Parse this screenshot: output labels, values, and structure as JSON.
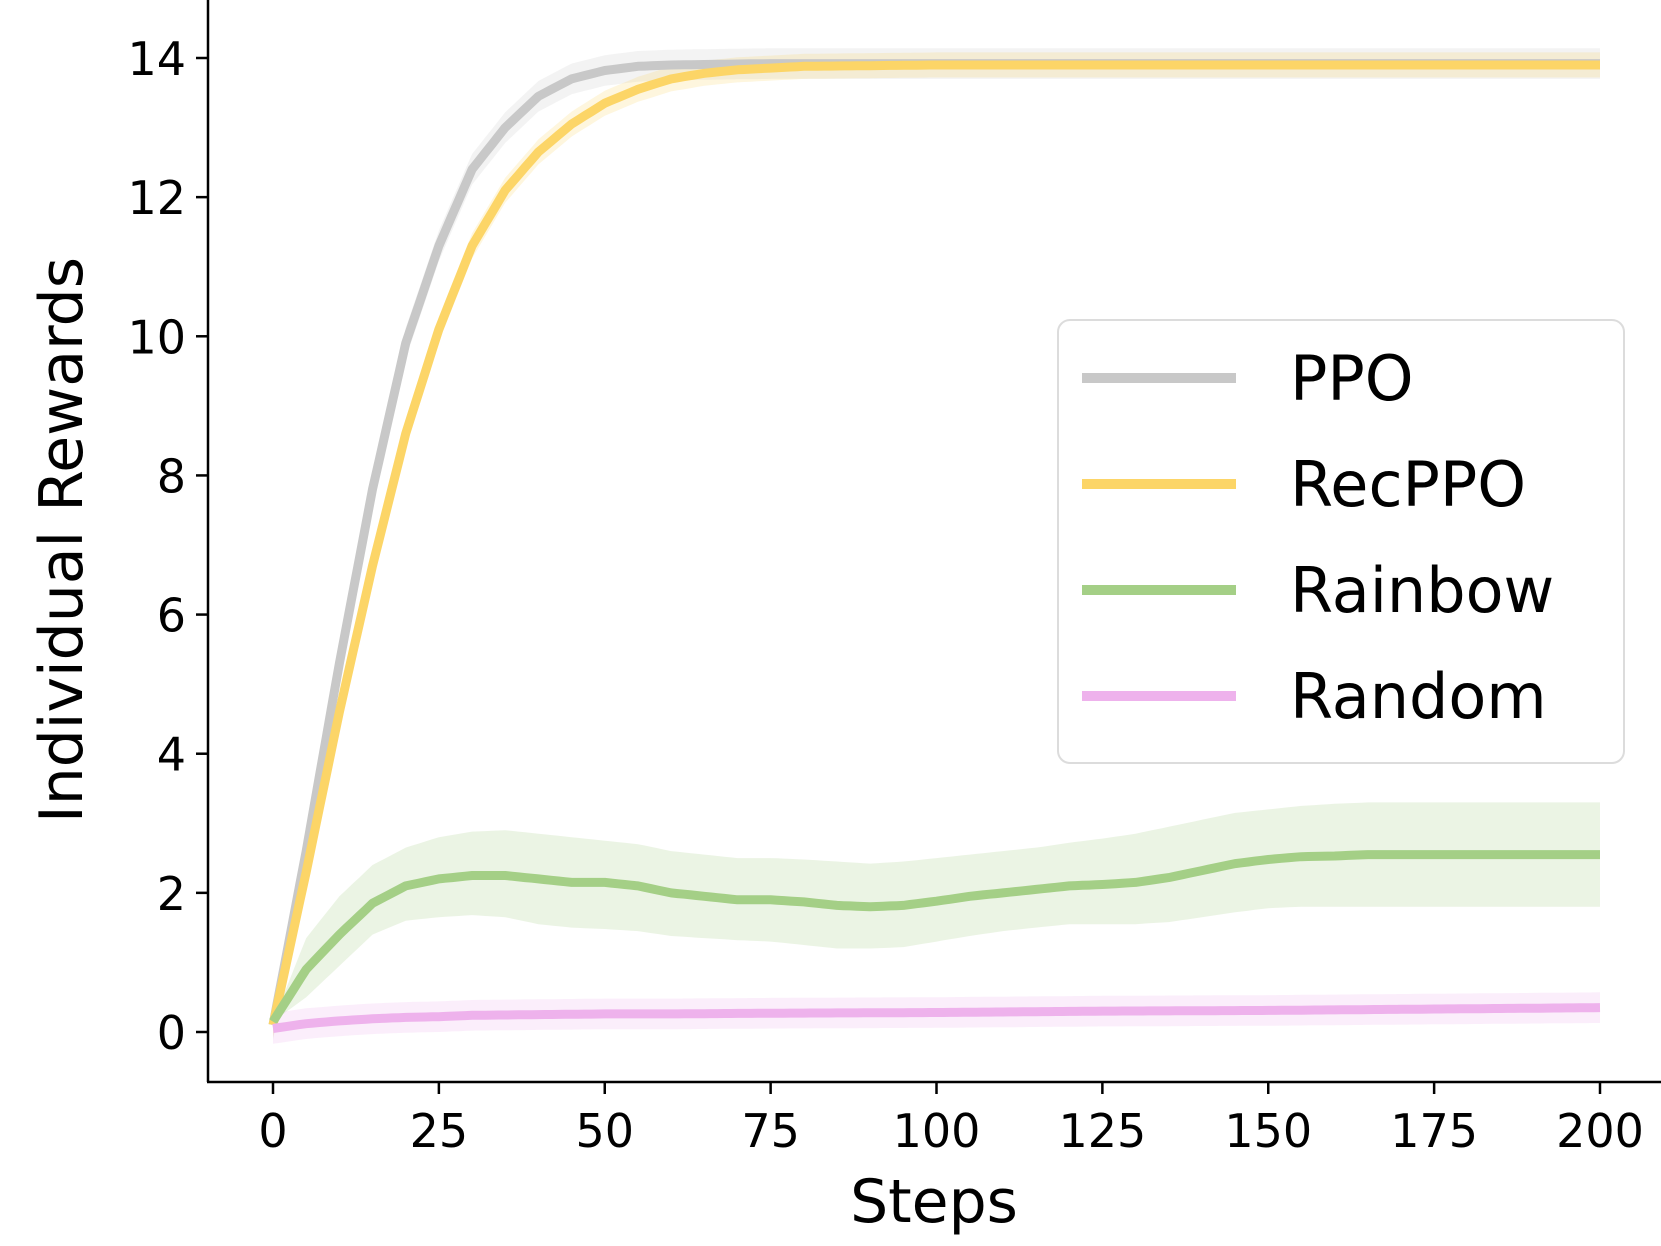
{
  "chart_data": {
    "type": "line",
    "xlabel": "Steps",
    "ylabel": "Individual Rewards",
    "xlim": [
      -10,
      208
    ],
    "ylim": [
      -0.75,
      14.75
    ],
    "xticks": [
      0,
      25,
      50,
      75,
      100,
      125,
      150,
      175,
      200
    ],
    "yticks": [
      0,
      2,
      4,
      6,
      8,
      10,
      12,
      14
    ],
    "grid": false,
    "legend_position": "center-right",
    "series": [
      {
        "name": "PPO",
        "color": "#c8c8c8",
        "points": [
          [
            0,
            0.1
          ],
          [
            5,
            2.6
          ],
          [
            10,
            5.3
          ],
          [
            15,
            7.8
          ],
          [
            20,
            9.9
          ],
          [
            25,
            11.3
          ],
          [
            30,
            12.4
          ],
          [
            35,
            13.0
          ],
          [
            40,
            13.45
          ],
          [
            45,
            13.7
          ],
          [
            50,
            13.82
          ],
          [
            55,
            13.88
          ],
          [
            60,
            13.9
          ],
          [
            75,
            13.92
          ],
          [
            100,
            13.92
          ],
          [
            125,
            13.92
          ],
          [
            150,
            13.92
          ],
          [
            175,
            13.92
          ],
          [
            200,
            13.92
          ]
        ],
        "band": 0.22
      },
      {
        "name": "RecPPO",
        "color": "#fcd567",
        "points": [
          [
            0,
            0.1
          ],
          [
            5,
            2.3
          ],
          [
            10,
            4.6
          ],
          [
            15,
            6.7
          ],
          [
            20,
            8.6
          ],
          [
            25,
            10.1
          ],
          [
            30,
            11.3
          ],
          [
            35,
            12.1
          ],
          [
            40,
            12.65
          ],
          [
            45,
            13.05
          ],
          [
            50,
            13.35
          ],
          [
            55,
            13.55
          ],
          [
            60,
            13.7
          ],
          [
            65,
            13.78
          ],
          [
            70,
            13.83
          ],
          [
            80,
            13.88
          ],
          [
            100,
            13.9
          ],
          [
            125,
            13.9
          ],
          [
            150,
            13.9
          ],
          [
            175,
            13.9
          ],
          [
            200,
            13.9
          ]
        ],
        "band": 0.18
      },
      {
        "name": "Rainbow",
        "color": "#a4cf86",
        "points": [
          [
            0,
            0.15
          ],
          [
            5,
            0.9
          ],
          [
            10,
            1.4
          ],
          [
            15,
            1.85
          ],
          [
            20,
            2.1
          ],
          [
            25,
            2.2
          ],
          [
            30,
            2.25
          ],
          [
            35,
            2.25
          ],
          [
            40,
            2.2
          ],
          [
            45,
            2.15
          ],
          [
            50,
            2.15
          ],
          [
            55,
            2.1
          ],
          [
            60,
            2.0
          ],
          [
            65,
            1.95
          ],
          [
            70,
            1.9
          ],
          [
            75,
            1.9
          ],
          [
            80,
            1.87
          ],
          [
            85,
            1.82
          ],
          [
            90,
            1.8
          ],
          [
            95,
            1.82
          ],
          [
            100,
            1.88
          ],
          [
            105,
            1.95
          ],
          [
            110,
            2.0
          ],
          [
            115,
            2.05
          ],
          [
            120,
            2.1
          ],
          [
            125,
            2.12
          ],
          [
            130,
            2.15
          ],
          [
            135,
            2.22
          ],
          [
            140,
            2.32
          ],
          [
            145,
            2.42
          ],
          [
            150,
            2.48
          ],
          [
            155,
            2.52
          ],
          [
            160,
            2.53
          ],
          [
            165,
            2.55
          ],
          [
            170,
            2.55
          ],
          [
            175,
            2.55
          ],
          [
            180,
            2.55
          ],
          [
            185,
            2.55
          ],
          [
            190,
            2.55
          ],
          [
            195,
            2.55
          ],
          [
            200,
            2.55
          ]
        ],
        "band_low": [
          [
            0,
            0.15
          ],
          [
            5,
            0.5
          ],
          [
            10,
            0.95
          ],
          [
            15,
            1.4
          ],
          [
            20,
            1.6
          ],
          [
            25,
            1.65
          ],
          [
            30,
            1.68
          ],
          [
            35,
            1.65
          ],
          [
            40,
            1.55
          ],
          [
            45,
            1.5
          ],
          [
            50,
            1.48
          ],
          [
            55,
            1.45
          ],
          [
            60,
            1.38
          ],
          [
            65,
            1.35
          ],
          [
            70,
            1.32
          ],
          [
            75,
            1.3
          ],
          [
            80,
            1.25
          ],
          [
            85,
            1.2
          ],
          [
            90,
            1.2
          ],
          [
            95,
            1.22
          ],
          [
            100,
            1.3
          ],
          [
            105,
            1.38
          ],
          [
            110,
            1.45
          ],
          [
            115,
            1.5
          ],
          [
            120,
            1.55
          ],
          [
            125,
            1.55
          ],
          [
            130,
            1.55
          ],
          [
            135,
            1.58
          ],
          [
            140,
            1.65
          ],
          [
            145,
            1.72
          ],
          [
            150,
            1.78
          ],
          [
            155,
            1.8
          ],
          [
            160,
            1.8
          ],
          [
            165,
            1.8
          ],
          [
            170,
            1.8
          ],
          [
            175,
            1.8
          ],
          [
            180,
            1.8
          ],
          [
            185,
            1.8
          ],
          [
            190,
            1.8
          ],
          [
            195,
            1.8
          ],
          [
            200,
            1.8
          ]
        ],
        "band_high": [
          [
            0,
            0.15
          ],
          [
            5,
            1.35
          ],
          [
            10,
            1.95
          ],
          [
            15,
            2.4
          ],
          [
            20,
            2.65
          ],
          [
            25,
            2.8
          ],
          [
            30,
            2.88
          ],
          [
            35,
            2.9
          ],
          [
            40,
            2.85
          ],
          [
            45,
            2.8
          ],
          [
            50,
            2.75
          ],
          [
            55,
            2.7
          ],
          [
            60,
            2.6
          ],
          [
            65,
            2.55
          ],
          [
            70,
            2.5
          ],
          [
            75,
            2.5
          ],
          [
            80,
            2.48
          ],
          [
            85,
            2.45
          ],
          [
            90,
            2.42
          ],
          [
            95,
            2.45
          ],
          [
            100,
            2.5
          ],
          [
            105,
            2.55
          ],
          [
            110,
            2.6
          ],
          [
            115,
            2.65
          ],
          [
            120,
            2.72
          ],
          [
            125,
            2.78
          ],
          [
            130,
            2.85
          ],
          [
            135,
            2.95
          ],
          [
            140,
            3.05
          ],
          [
            145,
            3.15
          ],
          [
            150,
            3.2
          ],
          [
            155,
            3.25
          ],
          [
            160,
            3.28
          ],
          [
            165,
            3.3
          ],
          [
            170,
            3.3
          ],
          [
            175,
            3.3
          ],
          [
            180,
            3.3
          ],
          [
            185,
            3.3
          ],
          [
            190,
            3.3
          ],
          [
            195,
            3.3
          ],
          [
            200,
            3.3
          ]
        ]
      },
      {
        "name": "Random",
        "color": "#eeb2ec",
        "points": [
          [
            0,
            0.05
          ],
          [
            5,
            0.12
          ],
          [
            10,
            0.16
          ],
          [
            15,
            0.19
          ],
          [
            20,
            0.21
          ],
          [
            25,
            0.22
          ],
          [
            30,
            0.24
          ],
          [
            40,
            0.25
          ],
          [
            50,
            0.26
          ],
          [
            60,
            0.26
          ],
          [
            75,
            0.27
          ],
          [
            100,
            0.28
          ],
          [
            125,
            0.3
          ],
          [
            150,
            0.31
          ],
          [
            175,
            0.33
          ],
          [
            200,
            0.35
          ]
        ],
        "band": 0.22
      }
    ]
  }
}
